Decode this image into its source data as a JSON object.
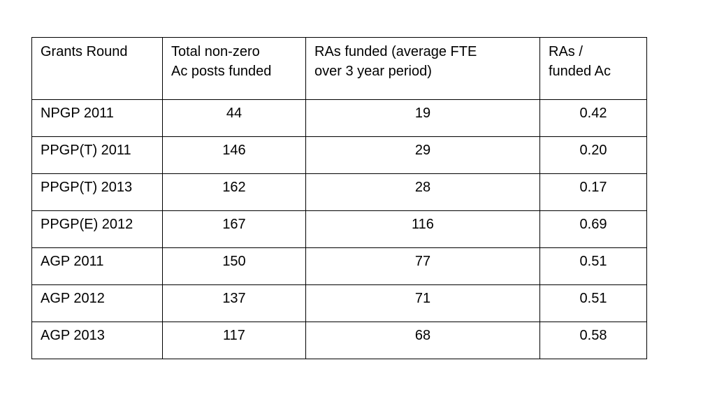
{
  "page": {
    "background_color": "#ffffff",
    "text_color": "#000000",
    "table_border_color": "#000000"
  },
  "table": {
    "columns": [
      {
        "id": "grants_round",
        "label": "Grants Round",
        "align": "left"
      },
      {
        "id": "total_nonzero_ac_posts_funded",
        "label": "Total non-zero\nAc posts funded",
        "align": "center"
      },
      {
        "id": "ras_funded_avg_fte",
        "label": "RAs funded (average FTE\nover 3 year period)",
        "align": "center"
      },
      {
        "id": "ras_per_funded_ac",
        "label": "RAs /\nfunded Ac",
        "align": "center"
      }
    ],
    "rows": [
      {
        "cells": [
          "NPGP 2011",
          "44",
          "19",
          "0.42"
        ]
      },
      {
        "cells": [
          "PPGP(T) 2011",
          "146",
          "29",
          "0.20"
        ]
      },
      {
        "cells": [
          "PPGP(T) 2013",
          "162",
          "28",
          "0.17"
        ]
      },
      {
        "cells": [
          "PPGP(E) 2012",
          "167",
          "116",
          "0.69"
        ]
      },
      {
        "cells": [
          "AGP 2011",
          "150",
          "77",
          "0.51"
        ]
      },
      {
        "cells": [
          "AGP 2012",
          "137",
          "71",
          "0.51"
        ]
      },
      {
        "cells": [
          "AGP 2013",
          "117",
          "68",
          "0.58"
        ]
      }
    ]
  }
}
